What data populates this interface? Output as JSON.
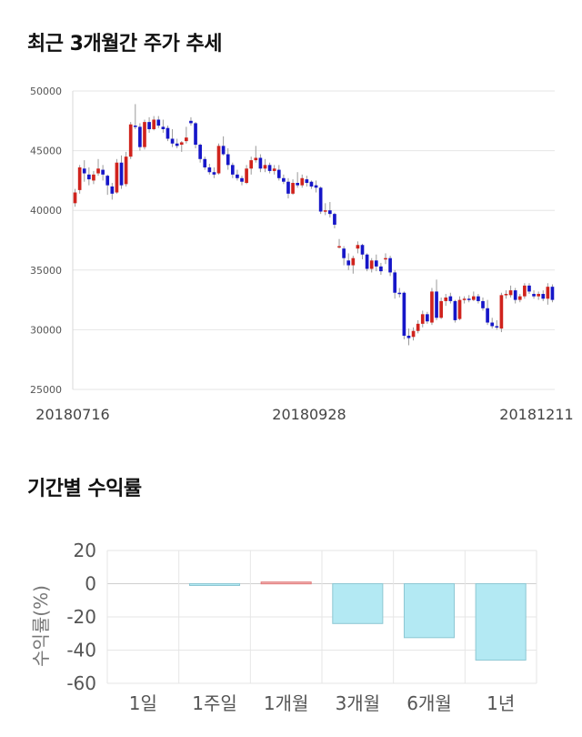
{
  "titles": {
    "price_trend": "최근 3개월간 주가 추세",
    "period_returns": "기간별 수익률"
  },
  "colors": {
    "up": "#d0231d",
    "down": "#1616c8",
    "wick": "#9a9a9a",
    "grid": "#e6e6e6",
    "bar_fill": "#b3e9f3",
    "bar_stroke": "#8dc7d3",
    "positive_bar": "#f2b3b3",
    "positive_stroke": "#e07a7a"
  },
  "chart_data": [
    {
      "type": "candlestick",
      "title": "최근 3개월간 주가 추세",
      "ylim": [
        25000,
        50000
      ],
      "y_ticks": [
        "50000",
        "45000",
        "40000",
        "35000",
        "30000",
        "25000"
      ],
      "x_tick_labels": [
        "20180716",
        "20180928",
        "20181211"
      ],
      "grid": true,
      "ohlc": [
        [
          40600,
          41800,
          40300,
          41500
        ],
        [
          41700,
          43800,
          41400,
          43600
        ],
        [
          43500,
          44200,
          42400,
          43100
        ],
        [
          43000,
          43600,
          42100,
          42600
        ],
        [
          42500,
          43300,
          42200,
          43000
        ],
        [
          43100,
          44300,
          42900,
          43500
        ],
        [
          43400,
          43800,
          42500,
          43000
        ],
        [
          42900,
          43000,
          41300,
          42100
        ],
        [
          42000,
          42300,
          40900,
          41400
        ],
        [
          41500,
          44300,
          41400,
          44000
        ],
        [
          44000,
          44600,
          41800,
          42100
        ],
        [
          42200,
          44900,
          42000,
          44500
        ],
        [
          44500,
          47400,
          44300,
          47200
        ],
        [
          47100,
          48900,
          46800,
          47000
        ],
        [
          47000,
          47300,
          45000,
          45300
        ],
        [
          45300,
          47600,
          45100,
          47400
        ],
        [
          47400,
          47800,
          46500,
          46800
        ],
        [
          46800,
          47900,
          46700,
          47600
        ],
        [
          47600,
          47900,
          46900,
          47100
        ],
        [
          47000,
          47600,
          46500,
          46800
        ],
        [
          46900,
          47100,
          45800,
          46000
        ],
        [
          46000,
          46800,
          45300,
          45600
        ],
        [
          45600,
          46000,
          45200,
          45400
        ],
        [
          45500,
          45800,
          44900,
          45700
        ],
        [
          45800,
          47000,
          45600,
          46100
        ],
        [
          47500,
          47800,
          47100,
          47300
        ],
        [
          47300,
          47400,
          45200,
          45500
        ],
        [
          45500,
          45600,
          44000,
          44300
        ],
        [
          44300,
          44500,
          43400,
          43600
        ],
        [
          43600,
          43900,
          43000,
          43200
        ],
        [
          43200,
          43600,
          42700,
          43000
        ],
        [
          43100,
          45600,
          43000,
          45400
        ],
        [
          45400,
          46200,
          44600,
          44700
        ],
        [
          44700,
          45200,
          43400,
          43800
        ],
        [
          43800,
          44000,
          42700,
          43000
        ],
        [
          43000,
          43400,
          42500,
          42700
        ],
        [
          42700,
          42900,
          42100,
          42400
        ],
        [
          42300,
          43800,
          42200,
          43500
        ],
        [
          43500,
          44500,
          43000,
          44200
        ],
        [
          44200,
          45400,
          44000,
          44400
        ],
        [
          44400,
          44700,
          43200,
          43500
        ],
        [
          43500,
          44300,
          43200,
          43800
        ],
        [
          43800,
          44000,
          43100,
          43300
        ],
        [
          43300,
          43800,
          43000,
          43500
        ],
        [
          43400,
          43800,
          42500,
          42700
        ],
        [
          42700,
          43000,
          42200,
          42400
        ],
        [
          42400,
          42700,
          41000,
          41400
        ],
        [
          41400,
          42600,
          41300,
          42300
        ],
        [
          42300,
          43200,
          41900,
          42100
        ],
        [
          42100,
          43000,
          41900,
          42700
        ],
        [
          42600,
          42900,
          42000,
          42300
        ],
        [
          42400,
          42500,
          41800,
          42000
        ],
        [
          42100,
          42500,
          41500,
          41900
        ],
        [
          41900,
          42000,
          39700,
          39900
        ],
        [
          40000,
          40600,
          39600,
          40000
        ],
        [
          40000,
          40700,
          39400,
          39700
        ],
        [
          39700,
          39800,
          38500,
          38800
        ],
        [
          37000,
          37600,
          36800,
          37000
        ],
        [
          36800,
          37000,
          35400,
          36000
        ],
        [
          35800,
          36400,
          35000,
          35400
        ],
        [
          35400,
          36200,
          34700,
          36000
        ],
        [
          36800,
          37400,
          36400,
          37100
        ],
        [
          37100,
          37200,
          35900,
          36300
        ],
        [
          36300,
          36400,
          34900,
          35100
        ],
        [
          35100,
          36000,
          34800,
          35800
        ],
        [
          35800,
          36300,
          34900,
          35300
        ],
        [
          35300,
          35600,
          34600,
          34900
        ],
        [
          36000,
          36400,
          35500,
          36000
        ],
        [
          36000,
          36200,
          34500,
          34800
        ],
        [
          34800,
          35000,
          32600,
          33100
        ],
        [
          33100,
          33500,
          32700,
          33000
        ],
        [
          33100,
          33200,
          29200,
          29500
        ],
        [
          29500,
          30100,
          28700,
          29300
        ],
        [
          29400,
          30200,
          29100,
          29900
        ],
        [
          29900,
          30800,
          29700,
          30500
        ],
        [
          30500,
          31600,
          30200,
          31300
        ],
        [
          31300,
          31500,
          30500,
          30700
        ],
        [
          30600,
          33500,
          30400,
          33200
        ],
        [
          33200,
          34200,
          30800,
          31000
        ],
        [
          31000,
          32700,
          30900,
          32400
        ],
        [
          32400,
          33000,
          32000,
          32700
        ],
        [
          32800,
          33100,
          32200,
          32400
        ],
        [
          32400,
          32500,
          30600,
          30800
        ],
        [
          30900,
          32800,
          30800,
          32500
        ],
        [
          32500,
          32800,
          32200,
          32600
        ],
        [
          32600,
          32900,
          32300,
          32500
        ],
        [
          32500,
          33200,
          32400,
          32800
        ],
        [
          32800,
          33000,
          32200,
          32400
        ],
        [
          32400,
          32700,
          31600,
          31800
        ],
        [
          31800,
          32500,
          30400,
          30600
        ],
        [
          30600,
          31000,
          30100,
          30300
        ],
        [
          30300,
          30800,
          30000,
          30200
        ],
        [
          30100,
          33100,
          29800,
          32900
        ],
        [
          32900,
          33300,
          32600,
          33000
        ],
        [
          32900,
          33700,
          32700,
          33300
        ],
        [
          33300,
          33500,
          32200,
          32500
        ],
        [
          32500,
          33000,
          32300,
          32800
        ],
        [
          32800,
          33900,
          32600,
          33700
        ],
        [
          33700,
          33900,
          33000,
          33200
        ],
        [
          33000,
          33300,
          32600,
          32800
        ],
        [
          32800,
          33200,
          32500,
          33000
        ],
        [
          33000,
          33300,
          32400,
          32600
        ],
        [
          32600,
          33900,
          32100,
          33600
        ],
        [
          33600,
          33800,
          32300,
          32500
        ]
      ]
    },
    {
      "type": "bar",
      "title": "기간별 수익률",
      "ylabel": "수익률(%)",
      "categories": [
        "1일",
        "1주일",
        "1개월",
        "3개월",
        "6개월",
        "1년"
      ],
      "values": [
        0,
        -1,
        1,
        -24,
        -32.5,
        -46
      ],
      "ylim": [
        -60,
        20
      ],
      "y_ticks": [
        "20",
        "0",
        "-20",
        "-40",
        "-60"
      ],
      "grid": true
    }
  ]
}
